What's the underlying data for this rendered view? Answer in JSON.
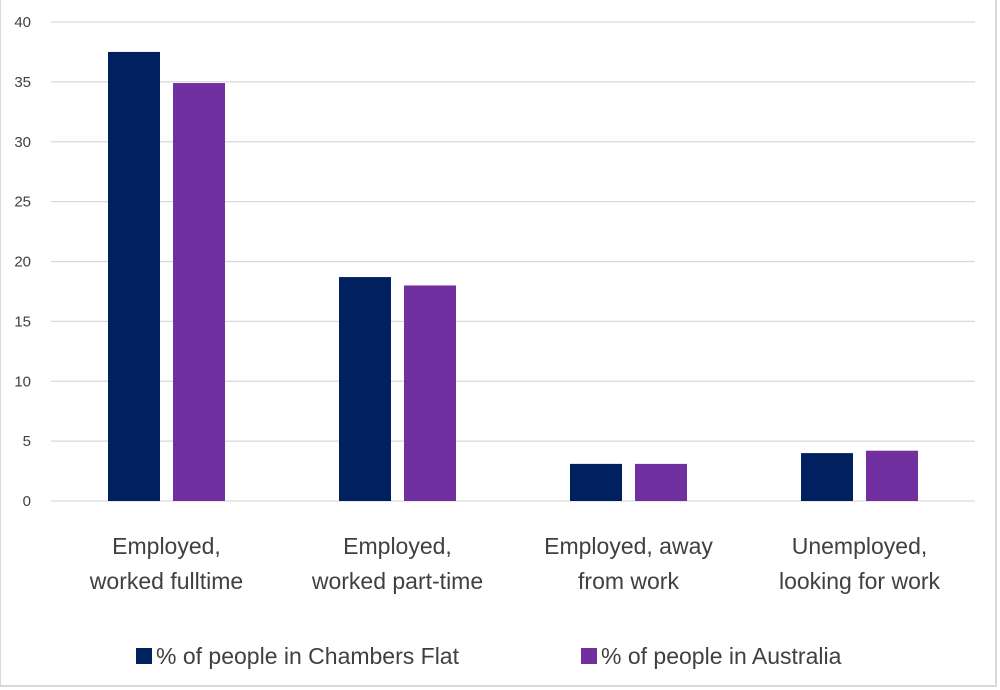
{
  "chart_data": {
    "type": "bar",
    "title": "",
    "xlabel": "",
    "ylabel": "",
    "ylim": [
      0,
      40
    ],
    "yticks": [
      0,
      5,
      10,
      15,
      20,
      25,
      30,
      35,
      40
    ],
    "grid": true,
    "legend_position": "bottom",
    "categories": [
      [
        "Employed,",
        "worked fulltime"
      ],
      [
        "Employed,",
        "worked part-time"
      ],
      [
        "Employed, away",
        "from work"
      ],
      [
        "Unemployed,",
        "looking  for work"
      ]
    ],
    "series": [
      {
        "name": "% of people in Chambers Flat",
        "color": "#002060",
        "values": [
          37.5,
          18.7,
          3.1,
          4.0
        ]
      },
      {
        "name": "% of people in Australia",
        "color": "#7030a0",
        "values": [
          34.9,
          18.0,
          3.1,
          4.2
        ]
      }
    ]
  }
}
